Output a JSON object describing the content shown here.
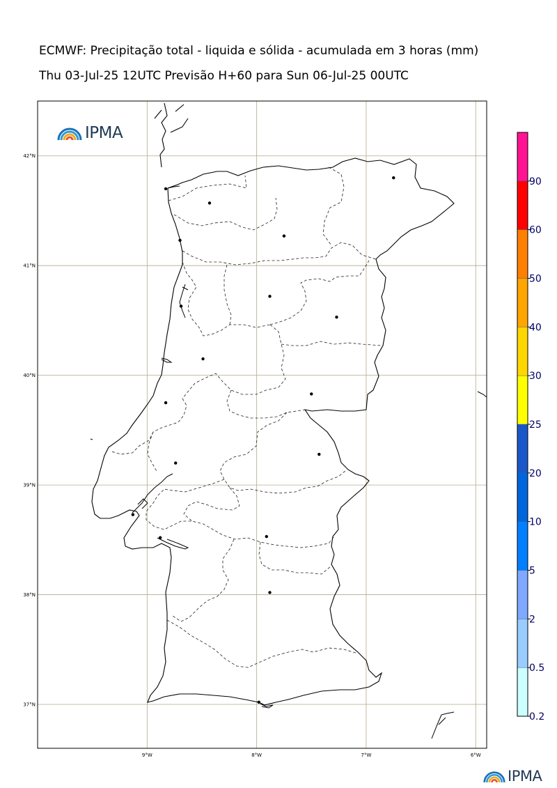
{
  "header": {
    "title": "ECMWF: Precipitação total - liquida e sólida - acumulada em 3 horas (mm)",
    "subtitle": "Thu 03-Jul-25 12UTC Previsão H+60 para Sun 06-Jul-25 00UTC"
  },
  "map": {
    "region": "Portugal Continental",
    "lon_range": [
      -10.0,
      -5.9
    ],
    "lat_range": [
      36.6,
      42.5
    ],
    "lon_ticks": [
      {
        "value": -9,
        "label": "9°W"
      },
      {
        "value": -8,
        "label": "8°W"
      },
      {
        "value": -7,
        "label": "7°W"
      },
      {
        "value": -6,
        "label": "6°W"
      }
    ],
    "lat_ticks": [
      {
        "value": 42,
        "label": "42°N"
      },
      {
        "value": 41,
        "label": "41°N"
      },
      {
        "value": 40,
        "label": "40°N"
      },
      {
        "value": 39,
        "label": "39°N"
      },
      {
        "value": 38,
        "label": "38°N"
      },
      {
        "value": 37,
        "label": "37°N"
      }
    ],
    "gridline_color": "#b5a98f",
    "coast_color": "#000000",
    "cities": [
      {
        "lon": -8.83,
        "lat": 41.7
      },
      {
        "lon": -8.43,
        "lat": 41.57
      },
      {
        "lon": -8.7,
        "lat": 41.23
      },
      {
        "lon": -7.75,
        "lat": 41.27
      },
      {
        "lon": -6.75,
        "lat": 41.8
      },
      {
        "lon": -8.69,
        "lat": 40.63
      },
      {
        "lon": -7.88,
        "lat": 40.72
      },
      {
        "lon": -7.27,
        "lat": 40.53
      },
      {
        "lon": -8.49,
        "lat": 40.15
      },
      {
        "lon": -8.83,
        "lat": 39.75
      },
      {
        "lon": -7.5,
        "lat": 39.83
      },
      {
        "lon": -8.74,
        "lat": 39.2
      },
      {
        "lon": -7.43,
        "lat": 39.28
      },
      {
        "lon": -9.13,
        "lat": 38.73
      },
      {
        "lon": -8.88,
        "lat": 38.52
      },
      {
        "lon": -7.91,
        "lat": 38.53
      },
      {
        "lon": -7.88,
        "lat": 38.02
      },
      {
        "lon": -7.98,
        "lat": 37.02
      }
    ]
  },
  "colorbar": {
    "levels": [
      "0.2",
      "0.5",
      "2",
      "5",
      "10",
      "20",
      "25",
      "30",
      "40",
      "50",
      "60",
      "90"
    ],
    "colors": [
      "#ccffff",
      "#99ccff",
      "#7fa9ff",
      "#0080ff",
      "#0066dd",
      "#1a57c9",
      "#ffff00",
      "#ffd700",
      "#ffa500",
      "#ff7f00",
      "#ff0000",
      "#ff1493"
    ],
    "label_color": "#000066"
  },
  "logos": {
    "main_text": "IPMA",
    "footer_text": "IPMA",
    "colors": [
      "#1b6fb8",
      "#2f9bd6",
      "#f0a91b",
      "#e8542a"
    ]
  }
}
